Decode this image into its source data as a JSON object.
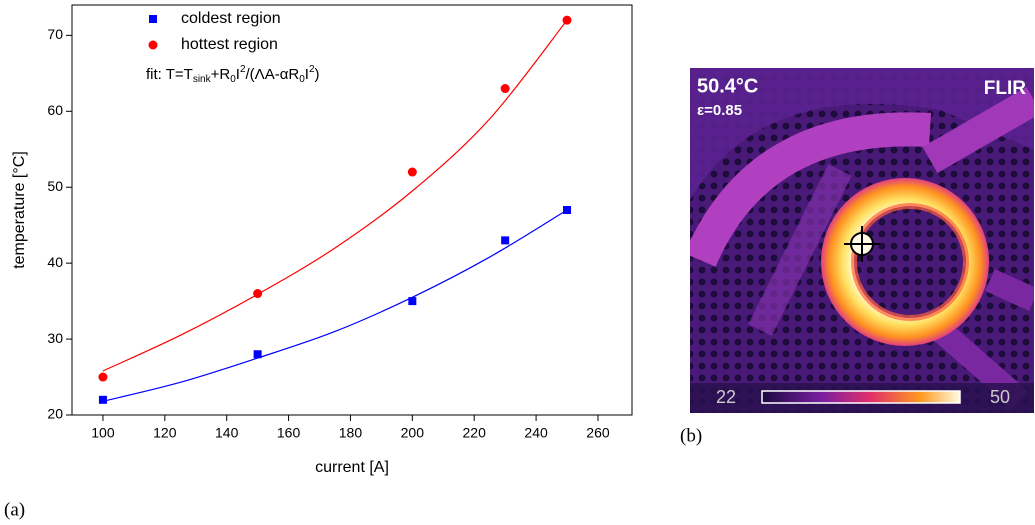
{
  "chart_data": {
    "type": "scatter",
    "x_label": "current [A]",
    "y_label": "temperature [°C]",
    "xlim": [
      90,
      271
    ],
    "ylim": [
      20,
      74
    ],
    "xticks": [
      100,
      120,
      140,
      160,
      180,
      200,
      220,
      240,
      260
    ],
    "yticks": [
      20,
      30,
      40,
      50,
      60,
      70
    ],
    "x": [
      100,
      150,
      200,
      230,
      250
    ],
    "series": [
      {
        "name": "coldest region",
        "color": "#0000ff",
        "marker": "square",
        "values": [
          22,
          28,
          35,
          43,
          47
        ]
      },
      {
        "name": "hottest region",
        "color": "#ff0000",
        "marker": "circle",
        "values": [
          25,
          36,
          52,
          63,
          72
        ]
      }
    ],
    "fit_curves": [
      {
        "color": "#0000ff",
        "x": [
          100,
          125,
          150,
          175,
          200,
          225,
          250
        ],
        "values": [
          21.8,
          24.3,
          27.5,
          31,
          35.5,
          40.8,
          47
        ]
      },
      {
        "color": "#ff0000",
        "x": [
          100,
          125,
          150,
          175,
          200,
          225,
          250
        ],
        "values": [
          25.8,
          30.5,
          35.9,
          42,
          49.5,
          59,
          72
        ]
      }
    ],
    "annotation": [
      "fit: T=T",
      "sink",
      "+R",
      "0",
      "I",
      "2",
      "/(ΛA-αR",
      "0",
      "I",
      "2",
      ")"
    ],
    "caption": "(a)"
  },
  "thermal_image": {
    "temperature": "50.4°C",
    "emissivity": "ε=0.85",
    "brand": "FLIR",
    "scale_min": "22",
    "scale_max": "50",
    "caption": "(b)"
  }
}
